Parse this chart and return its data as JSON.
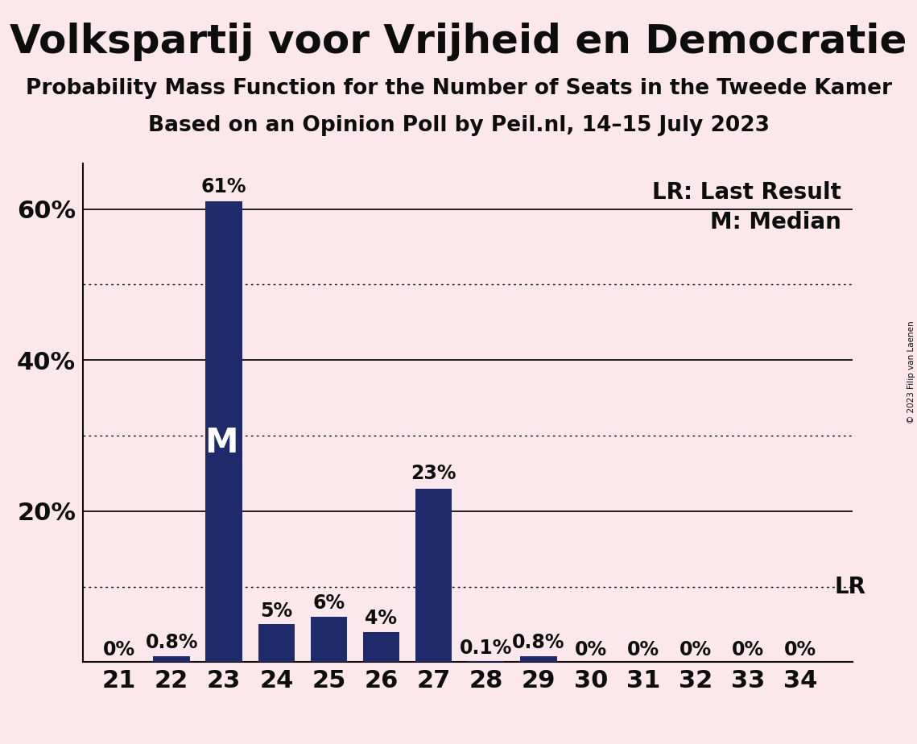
{
  "title": "Volkspartij voor Vrijheid en Democratie",
  "subtitle1": "Probability Mass Function for the Number of Seats in the Tweede Kamer",
  "subtitle2": "Based on an Opinion Poll by Peil.nl, 14–15 July 2023",
  "copyright": "© 2023 Filip van Laenen",
  "seats": [
    21,
    22,
    23,
    24,
    25,
    26,
    27,
    28,
    29,
    30,
    31,
    32,
    33,
    34
  ],
  "values": [
    0.0,
    0.8,
    61.0,
    5.0,
    6.0,
    4.0,
    23.0,
    0.1,
    0.8,
    0.0,
    0.0,
    0.0,
    0.0,
    0.0
  ],
  "bar_labels": [
    "0%",
    "0.8%",
    "61%",
    "5%",
    "6%",
    "4%",
    "23%",
    "0.1%",
    "0.8%",
    "0%",
    "0%",
    "0%",
    "0%",
    "0%"
  ],
  "bar_color": "#1f2a6b",
  "background_color": "#fce8ec",
  "ylim": [
    0,
    66
  ],
  "solid_yticks": [
    20,
    40,
    60
  ],
  "dotted_yticks": [
    10,
    30,
    50
  ],
  "lr_value": 10.0,
  "lr_label": "LR",
  "lr_legend": "LR: Last Result",
  "median_seat": 23,
  "median_label": "M",
  "median_legend": "M: Median",
  "title_fontsize": 36,
  "subtitle_fontsize": 19,
  "tick_fontsize": 22,
  "bar_label_fontsize": 17,
  "legend_fontsize": 20,
  "ytick_label_values": [
    20,
    40,
    60
  ],
  "axis_color": "#0d0d0d"
}
